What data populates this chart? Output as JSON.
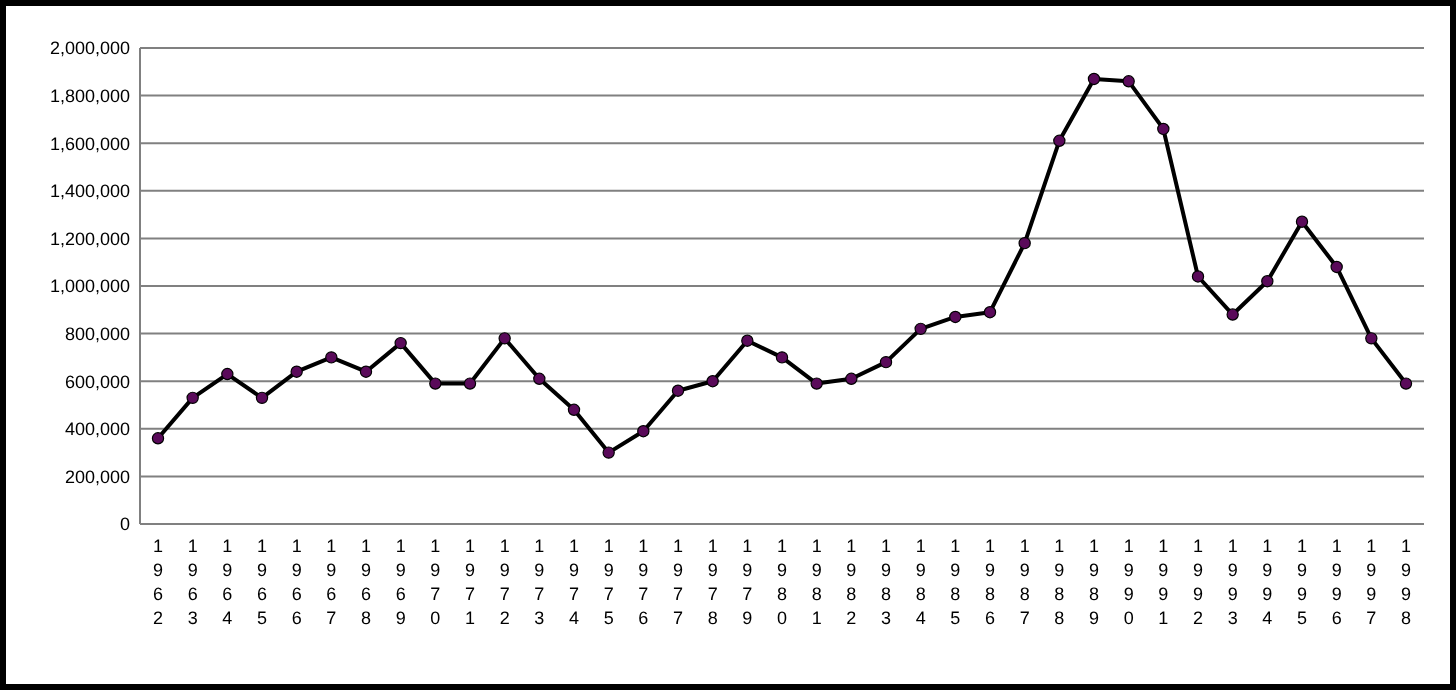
{
  "chart_data": {
    "type": "line",
    "categories": [
      "1962",
      "1963",
      "1964",
      "1965",
      "1966",
      "1967",
      "1968",
      "1969",
      "1970",
      "1971",
      "1972",
      "1973",
      "1974",
      "1975",
      "1976",
      "1977",
      "1978",
      "1979",
      "1980",
      "1981",
      "1982",
      "1983",
      "1984",
      "1985",
      "1986",
      "1987",
      "1988",
      "1989",
      "1990",
      "1991",
      "1992",
      "1993",
      "1994",
      "1995",
      "1996",
      "1997",
      "1998"
    ],
    "series": [
      {
        "color": "#000000",
        "values": [
          360000,
          530000,
          630000,
          530000,
          640000,
          700000,
          640000,
          760000,
          590000,
          590000,
          780000,
          610000,
          480000,
          300000,
          390000,
          560000,
          600000,
          770000,
          700000,
          590000,
          610000,
          680000,
          820000,
          870000,
          890000,
          1180000,
          1610000,
          1870000,
          1860000,
          1660000,
          1040000,
          880000,
          1020000,
          1270000,
          1080000,
          780000,
          590000
        ]
      }
    ],
    "ylim": [
      0,
      2000000
    ],
    "yticks": [
      {
        "value": 0,
        "label": "0"
      },
      {
        "value": 200000,
        "label": "200,000"
      },
      {
        "value": 400000,
        "label": "400,000"
      },
      {
        "value": 600000,
        "label": "600,000"
      },
      {
        "value": 800000,
        "label": "800,000"
      },
      {
        "value": 1000000,
        "label": "1,000,000"
      },
      {
        "value": 1200000,
        "label": "1,200,000"
      },
      {
        "value": 1400000,
        "label": "1,400,000"
      },
      {
        "value": 1600000,
        "label": "1,600,000"
      },
      {
        "value": 1800000,
        "label": "1,800,000"
      },
      {
        "value": 2000000,
        "label": "2,000,000"
      }
    ],
    "grid": "y",
    "marker": "circle",
    "line_style": "solid"
  }
}
